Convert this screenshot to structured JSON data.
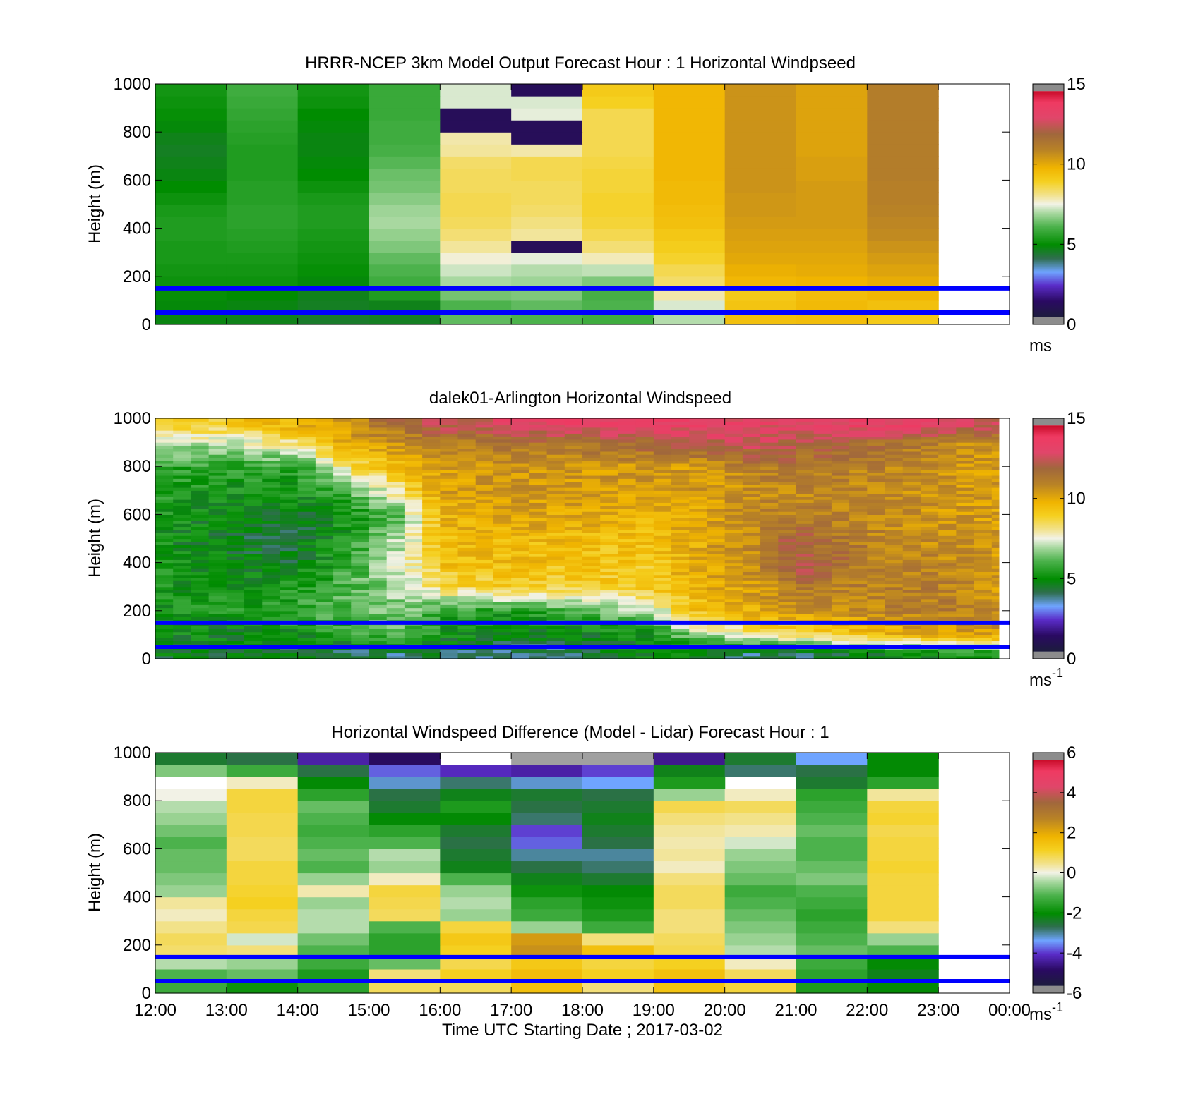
{
  "figure": {
    "xlabel": "Time UTC  Starting Date ; 2017-03-02",
    "xticks": [
      "12:00",
      "13:00",
      "14:00",
      "15:00",
      "16:00",
      "17:00",
      "18:00",
      "19:00",
      "20:00",
      "21:00",
      "22:00",
      "23:00",
      "00:00"
    ],
    "yticks": [
      "0",
      "200",
      "400",
      "600",
      "800",
      "1000"
    ],
    "ylabel": "Height (m)",
    "reference_lines_m": [
      150,
      50
    ],
    "reference_line_color": "#0000ff"
  },
  "chart_data": [
    {
      "type": "heatmap",
      "title": "HRRR-NCEP 3km Model Output   Forecast Hour : 1 Horizontal Windpseed",
      "ylabel": "Height (m)",
      "x_range_hours": [
        12,
        24
      ],
      "ylim": [
        0,
        1000
      ],
      "colorbar": {
        "min": 0,
        "max": 15,
        "ticks": [
          "0",
          "5",
          "10",
          "15"
        ],
        "unit": "ms",
        "unit_sup": ""
      },
      "x": [
        "12:00",
        "13:00",
        "14:00",
        "15:00",
        "16:00",
        "17:00",
        "18:00",
        "19:00",
        "20:00",
        "21:00",
        "22:00"
      ],
      "heights_m": [
        25,
        75,
        125,
        175,
        225,
        275,
        325,
        375,
        425,
        475,
        525,
        575,
        625,
        675,
        725,
        775,
        825,
        875,
        925,
        975
      ],
      "values_ms": [
        [
          4.6,
          4.5,
          4.3,
          4.4,
          6.2,
          6.0,
          5.8,
          7.0,
          9.5,
          9.6,
          9.2
        ],
        [
          4.7,
          4.6,
          4.4,
          4.5,
          6.0,
          6.2,
          6.0,
          7.3,
          9.4,
          9.7,
          9.5
        ],
        [
          4.9,
          4.8,
          4.5,
          5.3,
          6.4,
          6.5,
          5.9,
          7.9,
          9.2,
          9.6,
          9.8
        ],
        [
          5.0,
          5.0,
          4.7,
          5.8,
          6.9,
          6.8,
          6.5,
          8.4,
          9.8,
          9.9,
          10.1
        ],
        [
          5.1,
          5.1,
          4.9,
          6.0,
          7.2,
          7.0,
          7.1,
          8.6,
          10.0,
          10.1,
          10.3
        ],
        [
          5.2,
          5.2,
          5.0,
          6.2,
          7.6,
          7.4,
          7.8,
          8.9,
          10.2,
          10.2,
          10.5
        ],
        [
          5.2,
          5.3,
          5.1,
          6.5,
          8.0,
          0.8,
          8.3,
          9.1,
          10.3,
          10.3,
          10.7
        ],
        [
          5.3,
          5.4,
          5.2,
          6.7,
          8.3,
          8.0,
          8.6,
          9.3,
          10.4,
          10.4,
          10.9
        ],
        [
          5.3,
          5.5,
          5.3,
          6.9,
          8.5,
          8.2,
          8.8,
          9.5,
          10.5,
          10.5,
          11.0
        ],
        [
          5.2,
          5.5,
          5.3,
          6.8,
          8.6,
          8.4,
          8.9,
          9.6,
          10.6,
          10.5,
          11.1
        ],
        [
          5.0,
          5.4,
          5.2,
          6.6,
          8.6,
          8.5,
          8.9,
          9.7,
          10.6,
          10.5,
          11.2
        ],
        [
          4.8,
          5.4,
          5.0,
          6.4,
          8.5,
          8.5,
          8.8,
          9.7,
          10.7,
          10.5,
          11.2
        ],
        [
          4.6,
          5.3,
          4.8,
          6.3,
          8.5,
          8.6,
          8.8,
          9.8,
          10.7,
          10.4,
          11.3
        ],
        [
          4.5,
          5.3,
          4.7,
          6.1,
          8.4,
          8.6,
          8.7,
          9.8,
          10.7,
          10.4,
          11.3
        ],
        [
          4.4,
          5.3,
          4.6,
          5.9,
          8.0,
          7.9,
          8.6,
          9.8,
          10.7,
          10.3,
          11.3
        ],
        [
          4.5,
          5.4,
          4.6,
          5.8,
          7.9,
          0.8,
          8.6,
          9.8,
          10.7,
          10.3,
          11.3
        ],
        [
          4.7,
          5.5,
          4.7,
          5.8,
          0.8,
          0.8,
          8.6,
          9.8,
          10.7,
          10.3,
          11.3
        ],
        [
          4.9,
          5.6,
          4.8,
          5.7,
          0.8,
          7.4,
          8.6,
          9.8,
          10.7,
          10.3,
          11.3
        ],
        [
          5.0,
          5.7,
          5.0,
          5.7,
          7.3,
          7.3,
          9.0,
          9.8,
          10.7,
          10.3,
          11.3
        ],
        [
          5.1,
          5.8,
          5.1,
          5.7,
          7.3,
          0.8,
          9.2,
          9.8,
          10.7,
          10.3,
          11.3
        ]
      ]
    },
    {
      "type": "heatmap",
      "title": "dalek01-Arlington  Horizontal Windspeed",
      "ylabel": "Height (m)",
      "x_range_hours": [
        12,
        24
      ],
      "ylim": [
        0,
        1000
      ],
      "colorbar": {
        "min": 0,
        "max": 15,
        "ticks": [
          "0",
          "5",
          "10",
          "15"
        ],
        "unit": "ms",
        "unit_sup": "-1"
      },
      "data_end_hour": 23.85,
      "column_hours": 0.25,
      "key_profiles": {
        "hours": [
          12.0,
          13.0,
          14.0,
          14.75,
          15.5,
          16.0,
          17.0,
          18.0,
          19.0,
          19.5,
          20.5,
          21.0,
          22.0,
          23.0,
          23.85
        ],
        "heights_m": [
          25,
          100,
          200,
          300,
          400,
          500,
          600,
          700,
          800,
          900,
          975
        ],
        "values_ms": [
          [
            4.5,
            4.4,
            4.2,
            4.0,
            3.8,
            4.0,
            3.5,
            3.8,
            4.8,
            4.4,
            3.8,
            4.0,
            4.5,
            5.0,
            5.2
          ],
          [
            4.8,
            4.6,
            4.9,
            5.4,
            6.2,
            5.0,
            4.5,
            4.6,
            5.0,
            6.4,
            8.2,
            8.6,
            9.4,
            10.2,
            10.5
          ],
          [
            5.0,
            5.2,
            5.5,
            6.2,
            6.6,
            5.6,
            5.2,
            6.0,
            7.0,
            9.2,
            10.2,
            10.6,
            11.0,
            11.4,
            11.0
          ],
          [
            5.1,
            5.0,
            5.2,
            6.0,
            7.0,
            8.6,
            9.0,
            8.9,
            9.3,
            9.8,
            10.6,
            11.4,
            11.2,
            11.2,
            10.6
          ],
          [
            5.2,
            4.6,
            4.4,
            5.8,
            7.4,
            9.4,
            9.6,
            9.4,
            9.2,
            10.0,
            11.0,
            12.8,
            11.4,
            11.0,
            10.6
          ],
          [
            5.0,
            4.4,
            4.2,
            5.4,
            7.2,
            9.6,
            9.8,
            9.6,
            9.4,
            10.0,
            11.2,
            12.2,
            11.2,
            10.8,
            10.5
          ],
          [
            5.2,
            4.6,
            4.4,
            5.0,
            6.4,
            10.0,
            10.4,
            10.2,
            10.0,
            10.2,
            11.0,
            11.4,
            11.0,
            10.6,
            10.4
          ],
          [
            5.4,
            5.0,
            5.0,
            6.2,
            8.5,
            10.4,
            10.6,
            10.6,
            10.4,
            10.4,
            10.8,
            11.0,
            11.0,
            10.6,
            10.4
          ],
          [
            5.6,
            5.4,
            5.6,
            8.6,
            9.6,
            10.4,
            10.6,
            10.6,
            10.6,
            10.4,
            11.4,
            11.6,
            11.2,
            10.8,
            10.4
          ],
          [
            6.8,
            7.2,
            8.4,
            10.2,
            10.8,
            11.4,
            11.6,
            11.8,
            12.2,
            12.6,
            13.0,
            12.4,
            12.0,
            11.2,
            10.6
          ],
          [
            9.0,
            9.2,
            10.0,
            11.0,
            12.0,
            12.6,
            13.4,
            13.6,
            13.8,
            13.6,
            13.4,
            13.4,
            13.8,
            13.6,
            12.8
          ]
        ]
      }
    },
    {
      "type": "heatmap",
      "title": "Horizontal Windspeed Difference (Model - Lidar) Forecast Hour : 1",
      "ylabel": "Height (m)",
      "x_range_hours": [
        12,
        24
      ],
      "ylim": [
        0,
        1000
      ],
      "colorbar": {
        "min": -6,
        "max": 6,
        "ticks": [
          "-6",
          "-4",
          "-2",
          "0",
          "2",
          "4",
          "6"
        ],
        "unit": "ms",
        "unit_sup": "-1"
      },
      "x": [
        "12:00",
        "13:00",
        "14:00",
        "15:00",
        "16:00",
        "17:00",
        "18:00",
        "19:00",
        "20:00",
        "21:00",
        "22:00"
      ],
      "heights_m": [
        25,
        75,
        125,
        175,
        225,
        275,
        325,
        375,
        425,
        475,
        525,
        575,
        625,
        675,
        725,
        775,
        825,
        875,
        925,
        975
      ],
      "values_ms": [
        [
          -1.4,
          -2.0,
          -1.6,
          0.8,
          0.8,
          1.6,
          0.6,
          1.5,
          1.0,
          -1.8,
          -2.2
        ],
        [
          -1.2,
          -1.0,
          -1.8,
          0.6,
          1.2,
          1.7,
          1.2,
          1.6,
          0.8,
          -1.6,
          -2.4
        ],
        [
          -0.4,
          -0.6,
          -1.4,
          -1.0,
          0.9,
          1.4,
          1.0,
          1.2,
          0.2,
          -1.4,
          -2.2
        ],
        [
          0.7,
          0.6,
          -1.2,
          -1.6,
          1.2,
          2.6,
          1.6,
          0.9,
          -0.4,
          -1.0,
          -1.2
        ],
        [
          0.8,
          -0.2,
          -0.9,
          -1.6,
          1.4,
          2.4,
          0.6,
          0.8,
          -0.6,
          -1.2,
          -0.6
        ],
        [
          0.5,
          0.9,
          -0.4,
          -1.2,
          1.0,
          -0.6,
          -1.4,
          0.6,
          -0.8,
          -1.4,
          0.6
        ],
        [
          0.2,
          1.0,
          -0.4,
          0.8,
          -0.6,
          -1.4,
          -1.8,
          0.6,
          -1.0,
          -1.6,
          1.0
        ],
        [
          0.4,
          1.2,
          -0.6,
          0.9,
          -0.4,
          -1.6,
          -2.0,
          0.8,
          -1.2,
          -1.4,
          1.0
        ],
        [
          -0.6,
          1.1,
          0.3,
          1.0,
          -0.6,
          -2.0,
          -2.2,
          0.8,
          -1.4,
          -1.2,
          1.0
        ],
        [
          -0.8,
          1.0,
          -0.6,
          0.2,
          -1.2,
          -2.4,
          -2.6,
          0.6,
          -1.0,
          -0.8,
          1.0
        ],
        [
          -1.0,
          1.0,
          -1.2,
          -0.6,
          -2.4,
          -2.8,
          -3.0,
          0.2,
          -0.8,
          -1.0,
          1.1
        ],
        [
          -1.0,
          0.8,
          -1.0,
          -0.4,
          -2.6,
          -3.2,
          -3.2,
          0.4,
          -0.6,
          -1.2,
          1.0
        ],
        [
          -1.2,
          0.8,
          -1.2,
          -1.2,
          -2.8,
          -4.0,
          -2.8,
          0.3,
          -0.2,
          -1.2,
          1.0
        ],
        [
          -0.9,
          0.9,
          -1.4,
          -1.6,
          -2.6,
          -4.2,
          -2.6,
          0.4,
          0.3,
          -1.0,
          0.9
        ],
        [
          -0.6,
          0.9,
          -1.2,
          -2.2,
          -2.2,
          -3.0,
          -2.4,
          0.6,
          0.5,
          -1.2,
          1.1
        ],
        [
          -0.4,
          1.0,
          -1.0,
          -2.6,
          -1.8,
          -2.8,
          -2.6,
          0.9,
          0.8,
          -1.4,
          1.0
        ],
        [
          0.0,
          1.0,
          -1.6,
          -2.8,
          -2.4,
          -2.6,
          -2.8,
          -0.6,
          0.2,
          -1.6,
          0.4
        ],
        [
          null,
          0.2,
          -2.2,
          -3.4,
          -3.0,
          -3.4,
          -3.6,
          -1.8,
          null,
          -2.6,
          -1.6
        ],
        [
          -0.8,
          -1.4,
          -2.8,
          -4.0,
          -4.4,
          -4.6,
          -4.2,
          -2.4,
          -3.0,
          -2.8,
          -2.2
        ],
        [
          -2.6,
          -2.8,
          -4.6,
          -5.2,
          null,
          -5.6,
          -5.6,
          -4.8,
          -2.6,
          -3.6,
          -2.2
        ]
      ]
    }
  ]
}
